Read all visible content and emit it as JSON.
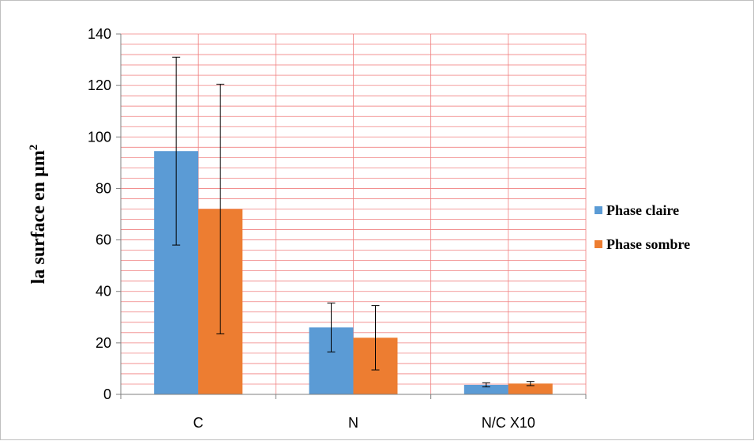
{
  "chart_data": {
    "type": "bar",
    "categories": [
      "C",
      "N",
      "N/C X10"
    ],
    "series": [
      {
        "name": "Phase claire",
        "color": "#5b9bd5",
        "values": [
          94.5,
          26,
          3.7
        ],
        "error": [
          36.5,
          9.5,
          0.8
        ]
      },
      {
        "name": "Phase sombre",
        "color": "#ed7d31",
        "values": [
          72,
          22,
          4.2
        ],
        "error": [
          48.5,
          12.5,
          0.8
        ]
      }
    ],
    "title": "",
    "xlabel": "",
    "ylabel": "la surface en µm",
    "ylabel_superscript": "2",
    "ylim": [
      0,
      140
    ],
    "yticks": [
      0,
      20,
      40,
      60,
      80,
      100,
      120,
      140
    ],
    "grid": true,
    "grid_color": "#f08080",
    "legend": "right"
  }
}
